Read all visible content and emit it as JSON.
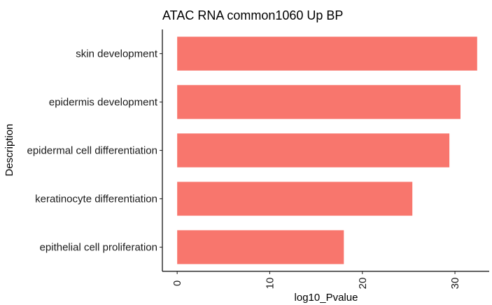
{
  "chart_data": {
    "type": "bar",
    "orientation": "horizontal",
    "title": "ATAC RNA common1060 Up BP",
    "xlabel": "log10_Pvalue",
    "ylabel": "Description",
    "categories": [
      "skin development",
      "epidermis development",
      "epidermal cell differentiation",
      "keratinocyte differentiation",
      "epithelial cell proliferation"
    ],
    "values": [
      32.4,
      30.6,
      29.4,
      25.4,
      18.0
    ],
    "xlim": [
      -1.6,
      33.7
    ],
    "xticks": [
      0,
      10,
      20,
      30
    ],
    "bar_color": "#F8766D",
    "grid": false,
    "legend": "none"
  }
}
